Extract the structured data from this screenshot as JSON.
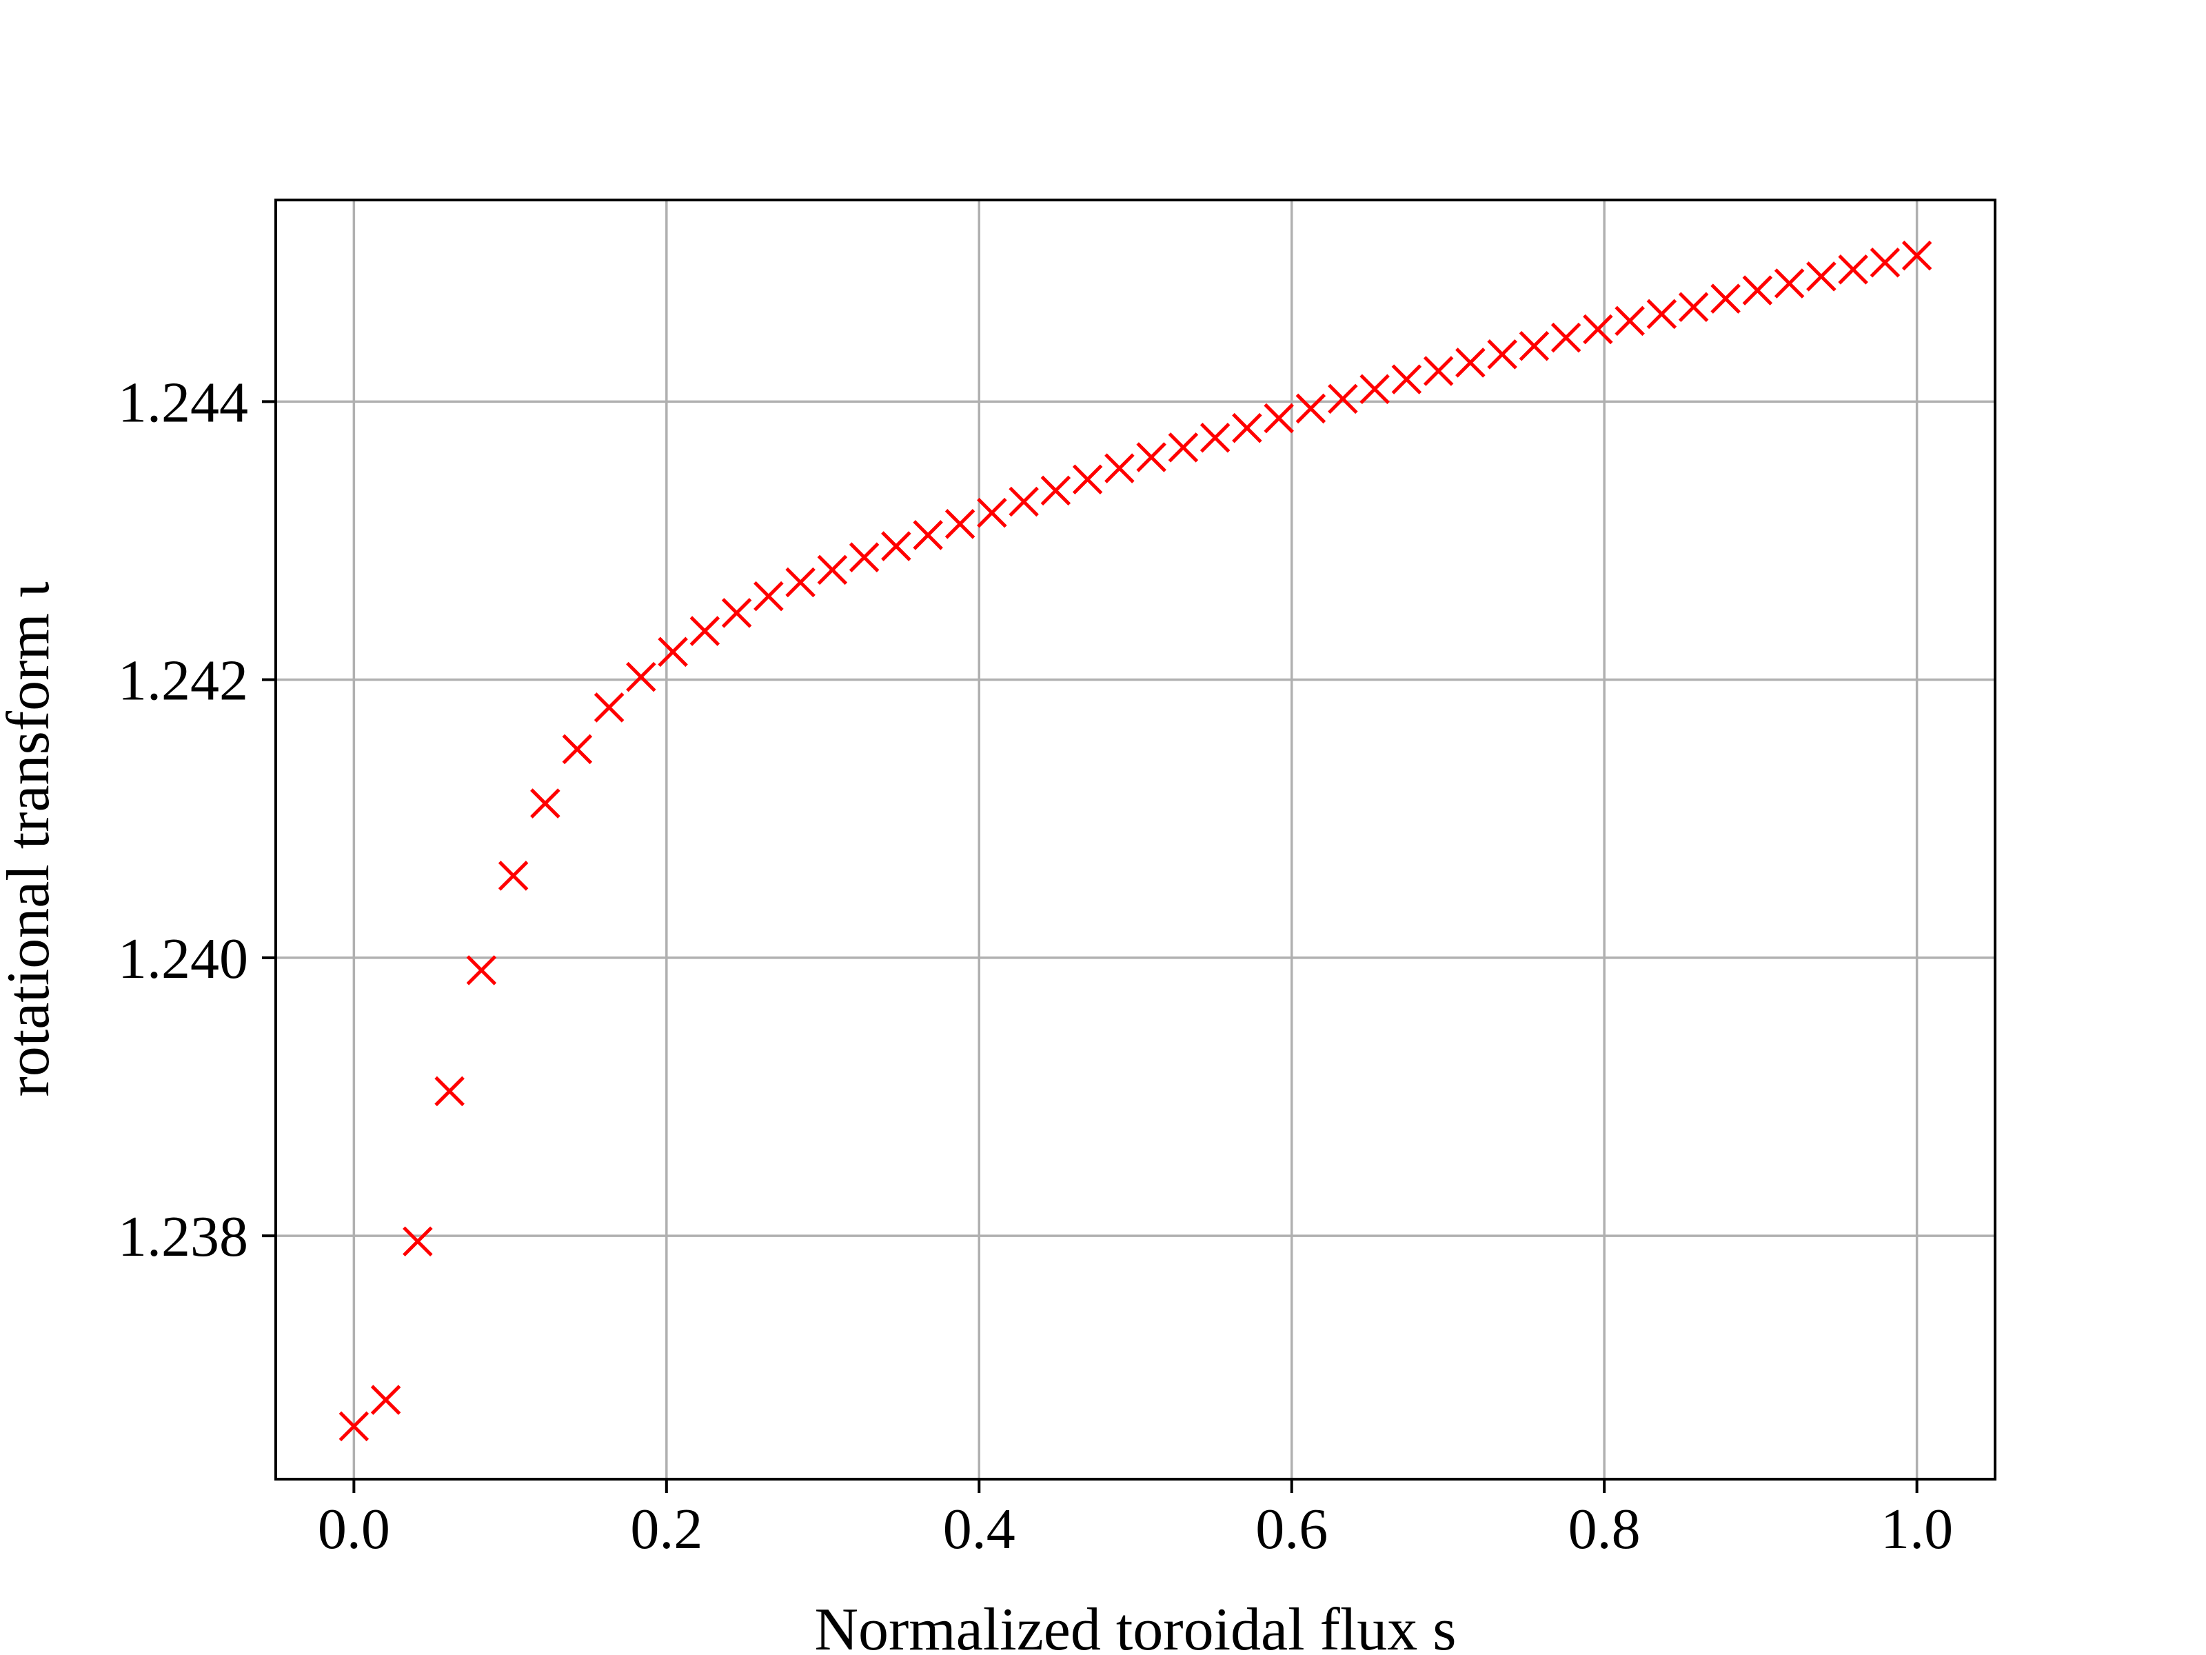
{
  "chart_data": {
    "type": "scatter",
    "title": "",
    "xlabel": "Normalized toroidal flux s",
    "ylabel": "rotational transform ι",
    "xlim": [
      -0.05,
      1.05
    ],
    "ylim": [
      1.23625,
      1.24545
    ],
    "grid": true,
    "marker": "x",
    "marker_color": "#ff0000",
    "xticks": [
      0.0,
      0.2,
      0.4,
      0.6,
      0.8,
      1.0
    ],
    "xtick_labels": [
      "0.0",
      "0.2",
      "0.4",
      "0.6",
      "0.8",
      "1.0"
    ],
    "yticks": [
      1.238,
      1.24,
      1.242,
      1.244
    ],
    "ytick_labels": [
      "1.238",
      "1.240",
      "1.242",
      "1.244"
    ],
    "series": [
      {
        "x": [
          0.0,
          0.0204,
          0.0408,
          0.0612,
          0.0816,
          0.102,
          0.1224,
          0.1429,
          0.1633,
          0.1837,
          0.2041,
          0.2245,
          0.2449,
          0.2653,
          0.2857,
          0.3061,
          0.3265,
          0.3469,
          0.3673,
          0.3878,
          0.4082,
          0.4286,
          0.449,
          0.4694,
          0.4898,
          0.5102,
          0.5306,
          0.551,
          0.5714,
          0.5918,
          0.6122,
          0.6327,
          0.6531,
          0.6735,
          0.6939,
          0.7143,
          0.7347,
          0.7551,
          0.7755,
          0.7959,
          0.8163,
          0.8367,
          0.8571,
          0.8776,
          0.898,
          0.9184,
          0.9388,
          0.9592,
          0.9796,
          1.0
        ],
        "y": [
          1.23663,
          1.23682,
          1.23796,
          1.23904,
          1.23991,
          1.24059,
          1.24111,
          1.2415,
          1.2418,
          1.24202,
          1.2422,
          1.24235,
          1.24248,
          1.2426,
          1.2427,
          1.24279,
          1.24288,
          1.24296,
          1.24304,
          1.24312,
          1.2432,
          1.24328,
          1.24336,
          1.24344,
          1.24352,
          1.2436,
          1.24367,
          1.24374,
          1.24381,
          1.24388,
          1.24395,
          1.24402,
          1.24409,
          1.24416,
          1.24422,
          1.24428,
          1.24434,
          1.2444,
          1.24446,
          1.24452,
          1.24458,
          1.24463,
          1.24468,
          1.24474,
          1.2448,
          1.24485,
          1.2449,
          1.24495,
          1.245,
          1.24505
        ]
      }
    ]
  }
}
